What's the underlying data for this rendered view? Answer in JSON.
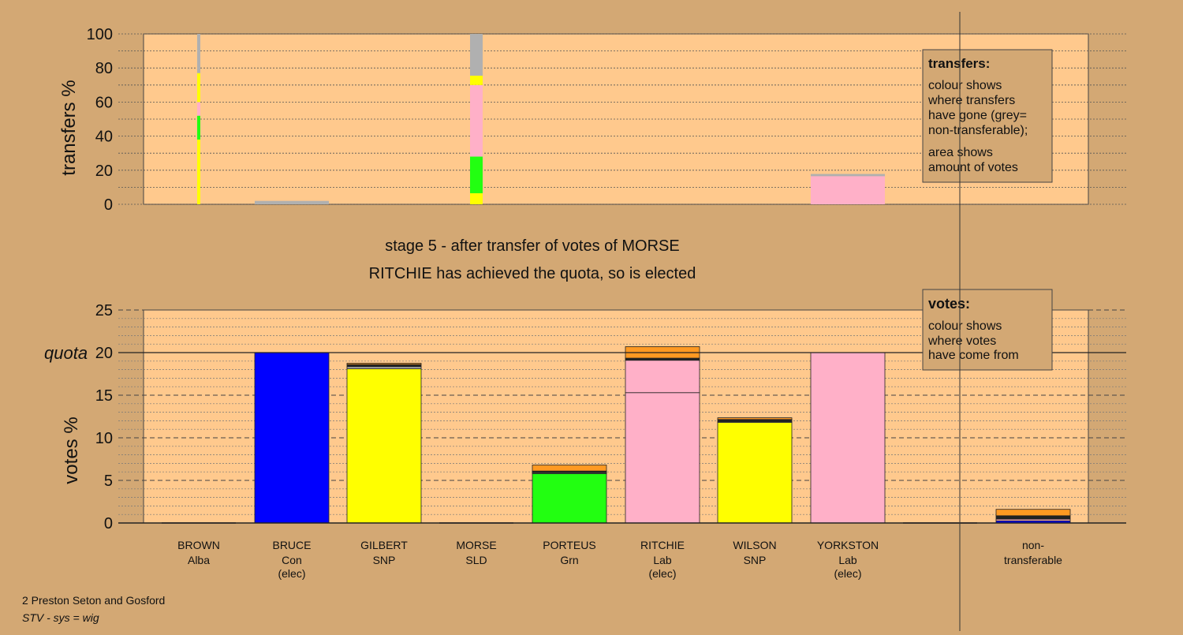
{
  "footer": {
    "line1": "2 Preston Seton and Gosford",
    "line2": "STV - sys = wig"
  },
  "stage_title": {
    "line1": "stage 5 - after transfer of votes of MORSE",
    "line2": "RITCHIE has achieved the quota, so is elected"
  },
  "colors": {
    "background": "#d3a874",
    "plot_area": "#ffc98d",
    "Alba": "#b8b8b8",
    "Con": "#0000ff",
    "SNP": "#ffff00",
    "SLD": "#ff9922",
    "Grn": "#22ff11",
    "Lab": "#ffb0c8",
    "nontransferable": "#b0b0b0",
    "dark_band": "#222222"
  },
  "chart_data": [
    {
      "id": "transfers",
      "type": "bar",
      "subtype": "stacked-variable-width",
      "ylabel": "transfers %",
      "ylim": [
        0,
        100
      ],
      "yticks": [
        0,
        20,
        40,
        60,
        80,
        100
      ],
      "grid": "dotted every 10",
      "legend": {
        "title": "transfers:",
        "lines": [
          "colour shows",
          "where transfers",
          "have gone (grey=",
          "non-transferable);",
          "area shows",
          "amount of votes"
        ],
        "position": "top-right"
      },
      "bars": [
        {
          "candidate": "BROWN",
          "width_share": 0.04,
          "segments": [
            {
              "party": "SNP",
              "value": 38
            },
            {
              "party": "Grn",
              "value": 14
            },
            {
              "party": "Lab",
              "value": 8
            },
            {
              "party": "SNP",
              "value": 17
            },
            {
              "party": "nontransferable",
              "value": 23
            }
          ]
        },
        {
          "candidate": "BRUCE",
          "width_share": 1.0,
          "segments": [
            {
              "party": "nontransferable",
              "value": 2
            }
          ]
        },
        {
          "candidate": "MORSE",
          "width_share": 0.17,
          "segments": [
            {
              "party": "SNP",
              "value": 6.5
            },
            {
              "party": "Grn",
              "value": 21.5
            },
            {
              "party": "Lab",
              "value": 42
            },
            {
              "party": "SNP",
              "value": 5.5
            },
            {
              "party": "nontransferable",
              "value": 24.5
            }
          ]
        },
        {
          "candidate": "YORKSTON",
          "width_share": 1.0,
          "segments": [
            {
              "party": "Lab",
              "value": 16.5
            },
            {
              "party": "nontransferable",
              "value": 1.3
            }
          ]
        }
      ]
    },
    {
      "id": "votes",
      "type": "bar",
      "subtype": "stacked",
      "ylabel": "votes %",
      "ylim": [
        0,
        25
      ],
      "yticks": [
        0,
        5,
        10,
        15,
        20,
        25
      ],
      "quota": 20,
      "quota_label": "quota",
      "grid": "dashed every 5, dotted every 1",
      "legend": {
        "title": "votes:",
        "lines": [
          "colour shows",
          "where votes",
          "have come from"
        ],
        "position": "top-right"
      },
      "candidates": [
        {
          "name": "BROWN",
          "party": "Alba",
          "elected": "",
          "segments": []
        },
        {
          "name": "BRUCE",
          "party": "Con",
          "elected": "(elec)",
          "segments": [
            {
              "party": "Con",
              "value": 20
            }
          ]
        },
        {
          "name": "GILBERT",
          "party": "SNP",
          "elected": "",
          "segments": [
            {
              "party": "SNP",
              "value": 18.1
            },
            {
              "party": "nontransferable",
              "value": 0.25
            },
            {
              "party": "dark_band",
              "value": 0.25
            },
            {
              "party": "SLD",
              "value": 0.15
            }
          ]
        },
        {
          "name": "MORSE",
          "party": "SLD",
          "elected": "",
          "segments": []
        },
        {
          "name": "PORTEUS",
          "party": "Grn",
          "elected": "",
          "segments": [
            {
              "party": "Grn",
              "value": 5.8
            },
            {
              "party": "nontransferable",
              "value": 0.1
            },
            {
              "party": "dark_band",
              "value": 0.2
            },
            {
              "party": "SLD",
              "value": 0.7
            }
          ]
        },
        {
          "name": "RITCHIE",
          "party": "Lab",
          "elected": "(elec)",
          "segments": [
            {
              "party": "Lab",
              "value": 15.3
            },
            {
              "party": "Lab",
              "value": 3.8
            },
            {
              "party": "dark_band",
              "value": 0.25
            },
            {
              "party": "SLD",
              "value": 1.35
            }
          ]
        },
        {
          "name": "WILSON",
          "party": "SNP",
          "elected": "",
          "segments": [
            {
              "party": "SNP",
              "value": 11.8
            },
            {
              "party": "nontransferable",
              "value": 0.1
            },
            {
              "party": "dark_band",
              "value": 0.25
            },
            {
              "party": "SLD",
              "value": 0.2
            }
          ]
        },
        {
          "name": "YORKSTON",
          "party": "Lab",
          "elected": "(elec)",
          "segments": [
            {
              "party": "Lab",
              "value": 20
            }
          ]
        },
        {
          "name": "",
          "party": "",
          "elected": "",
          "segments": []
        }
      ],
      "nontransferable": {
        "label_line1": "non-",
        "label_line2": "transferable",
        "segments": [
          {
            "party": "Con",
            "value": 0.25
          },
          {
            "party": "Lab",
            "value": 0.2
          },
          {
            "party": "dark_band",
            "value": 0.4
          },
          {
            "party": "SLD",
            "value": 0.75
          }
        ]
      }
    }
  ]
}
